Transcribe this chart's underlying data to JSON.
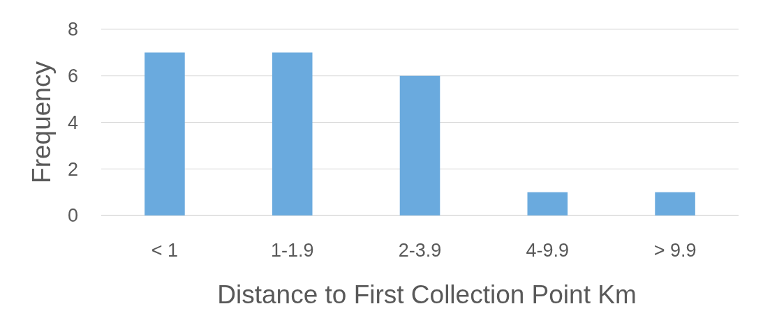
{
  "chart_data": {
    "type": "bar",
    "xlabel": "Distance to First Collection Point Km",
    "ylabel": "Frequency",
    "categories": [
      "< 1",
      "1-1.9",
      "2-3.9",
      "4-9.9",
      "> 9.9"
    ],
    "values": [
      7,
      7,
      6,
      1,
      1
    ],
    "color": "#6aaade",
    "ylim": [
      0,
      8
    ],
    "yticks": [
      0,
      2,
      4,
      6,
      8
    ],
    "grid": "y"
  }
}
